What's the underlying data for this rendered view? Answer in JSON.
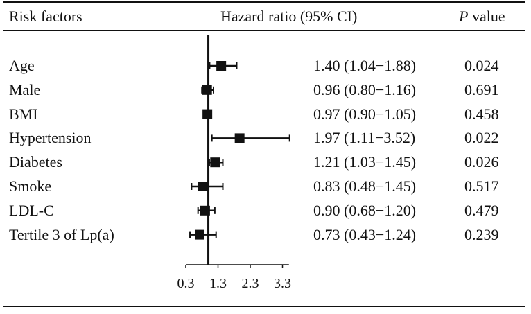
{
  "header": {
    "risk_factors": "Risk factors",
    "hazard_ratio": "Hazard ratio (95% CI)",
    "p_letter": "P",
    "p_word": " value"
  },
  "chart_data": {
    "type": "forest",
    "title": "",
    "xlabel": "",
    "ylabel": "",
    "reference_line": 1,
    "xlim": [
      0.3,
      3.5
    ],
    "x_ticks": [
      "0.3",
      "1.3",
      "2.3",
      "3.3"
    ],
    "grid": false,
    "rows": [
      {
        "label": "Age",
        "hr": 1.4,
        "lo": 1.04,
        "hi": 1.88,
        "ci_text": "1.40 (1.04−1.88)",
        "p": "0.024"
      },
      {
        "label": "Male",
        "hr": 0.96,
        "lo": 0.8,
        "hi": 1.16,
        "ci_text": "0.96 (0.80−1.16)",
        "p": "0.691"
      },
      {
        "label": "BMI",
        "hr": 0.97,
        "lo": 0.9,
        "hi": 1.05,
        "ci_text": "0.97 (0.90−1.05)",
        "p": "0.458"
      },
      {
        "label": "Hypertension",
        "hr": 1.97,
        "lo": 1.11,
        "hi": 3.52,
        "ci_text": "1.97 (1.11−3.52)",
        "p": "0.022"
      },
      {
        "label": "Diabetes",
        "hr": 1.21,
        "lo": 1.03,
        "hi": 1.45,
        "ci_text": "1.21 (1.03−1.45)",
        "p": "0.026"
      },
      {
        "label": "Smoke",
        "hr": 0.83,
        "lo": 0.48,
        "hi": 1.45,
        "ci_text": "0.83 (0.48−1.45)",
        "p": "0.517"
      },
      {
        "label": "LDL-C",
        "hr": 0.9,
        "lo": 0.68,
        "hi": 1.2,
        "ci_text": "0.90 (0.68−1.20)",
        "p": "0.479"
      },
      {
        "label": "Tertile 3 of Lp(a)",
        "hr": 0.73,
        "lo": 0.43,
        "hi": 1.24,
        "ci_text": "0.73 (0.43−1.24)",
        "p": "0.239"
      }
    ]
  }
}
